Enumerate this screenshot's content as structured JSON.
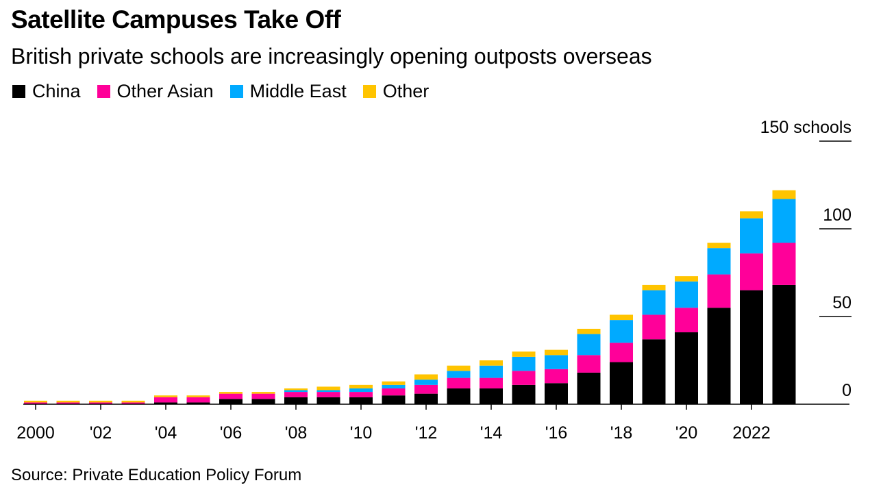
{
  "title": "Satellite Campuses Take Off",
  "subtitle": "British private schools are increasingly opening outposts overseas",
  "source": "Source: Private Education Policy Forum",
  "colors": {
    "China": "#000000",
    "Other Asian": "#ff0099",
    "Middle East": "#00aaff",
    "Other": "#ffc400"
  },
  "chart_data": {
    "type": "bar",
    "stacked": true,
    "categories": [
      "2000",
      "2001",
      "2002",
      "2003",
      "2004",
      "2005",
      "2006",
      "2007",
      "2008",
      "2009",
      "2010",
      "2011",
      "2012",
      "2013",
      "2014",
      "2015",
      "2016",
      "2017",
      "2018",
      "2019",
      "2020",
      "2021",
      "2022",
      "2023"
    ],
    "series": [
      {
        "name": "China",
        "values": [
          0,
          0,
          0,
          0,
          1,
          1,
          3,
          3,
          4,
          4,
          4,
          5,
          6,
          9,
          9,
          11,
          12,
          18,
          24,
          37,
          41,
          55,
          65,
          68
        ]
      },
      {
        "name": "Other Asian",
        "values": [
          1,
          1,
          1,
          1,
          3,
          3,
          3,
          3,
          3,
          3,
          3,
          4,
          5,
          6,
          6,
          8,
          8,
          10,
          11,
          14,
          14,
          19,
          21,
          24
        ]
      },
      {
        "name": "Middle East",
        "values": [
          0,
          0,
          0,
          0,
          0,
          0,
          0,
          0,
          1,
          1,
          2,
          2,
          3,
          4,
          7,
          8,
          8,
          12,
          13,
          14,
          15,
          15,
          20,
          25
        ]
      },
      {
        "name": "Other",
        "values": [
          1,
          1,
          1,
          1,
          1,
          1,
          1,
          1,
          1,
          2,
          2,
          2,
          3,
          3,
          3,
          3,
          3,
          3,
          3,
          3,
          3,
          3,
          4,
          5
        ]
      }
    ],
    "ylim": [
      0,
      150
    ],
    "yticks": [
      {
        "value": 0,
        "label": "0"
      },
      {
        "value": 50,
        "label": "50"
      },
      {
        "value": 100,
        "label": "100"
      },
      {
        "value": 150,
        "label": "150 schools"
      }
    ],
    "xtick_labels": [
      "2000",
      "'02",
      "'04",
      "'06",
      "'08",
      "'10",
      "'12",
      "'14",
      "'16",
      "'18",
      "'20",
      "2022"
    ],
    "xlabel": "",
    "ylabel": "schools",
    "legend_position": "top-left"
  }
}
